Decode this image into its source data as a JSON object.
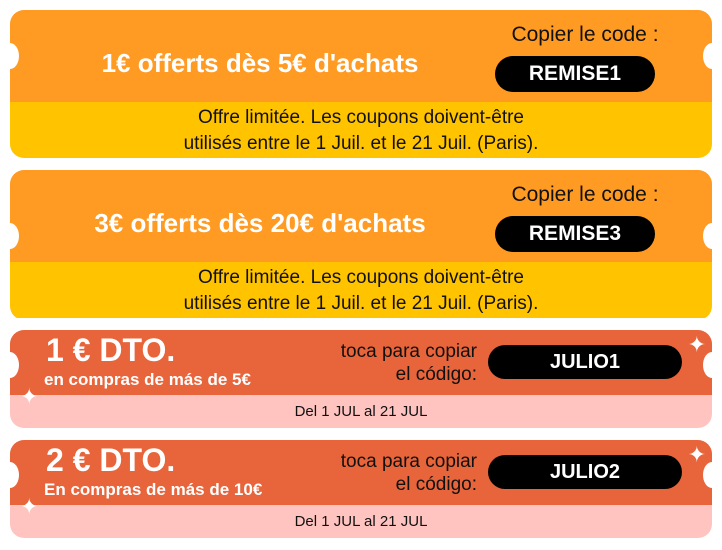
{
  "coupons_fr": [
    {
      "headline": "1€ offerts dès 5€ d'achats",
      "copy_label": "Copier le code :",
      "code": "REMISE1",
      "terms_line1": "Offre limitée. Les coupons doivent-être",
      "terms_line2": "utilisés entre le 1 Juil. et le 21 Juil. (Paris)."
    },
    {
      "headline": "3€ offerts dès 20€ d'achats",
      "copy_label": "Copier le code :",
      "code": "REMISE3",
      "terms_line1": "Offre limitée. Les coupons doivent-être",
      "terms_line2": "utilisés entre le 1 Juil. et le 21 Juil. (Paris)."
    }
  ],
  "coupons_es": [
    {
      "amount": "1 € DTO.",
      "condition": "en compras de más de 5€",
      "copy_line1": "toca para copiar",
      "copy_line2": "el código:",
      "code": "JULIO1",
      "validity": "Del 1 JUL al 21 JUL"
    },
    {
      "amount": "2 € DTO.",
      "condition": "En compras de más de 10€",
      "copy_line1": "toca para copiar",
      "copy_line2": "el código:",
      "code": "JULIO2",
      "validity": "Del 1 JUL al 21 JUL"
    }
  ],
  "colors": {
    "orange": "#FF9A22",
    "yellow": "#FFC300",
    "red_orange": "#E8643A",
    "pink": "#FFC4C0",
    "code_bg": "#000000"
  },
  "icons": {
    "sparkle": "sparkle-icon"
  }
}
